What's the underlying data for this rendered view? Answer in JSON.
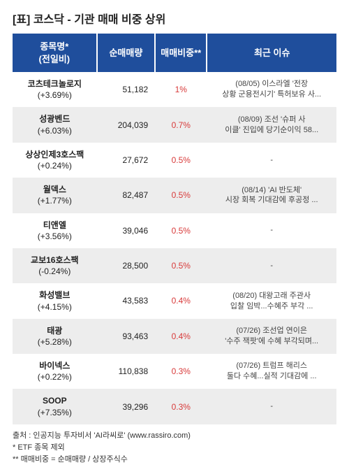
{
  "title": "[표] 코스닥 - 기관 매매 비중 상위",
  "columns": {
    "name": "종목명*\n(전일비)",
    "volume": "순매매량",
    "ratio": "매매비중**",
    "issue": "최근 이슈"
  },
  "colors": {
    "header_bg": "#1f4e9c",
    "header_text": "#ffffff",
    "row_alt_bg": "#ededed",
    "ratio_text": "#d83a3a",
    "body_text": "#222222"
  },
  "rows": [
    {
      "name": "코츠테크놀로지",
      "change": "(+3.69%)",
      "volume": "51,182",
      "ratio": "1%",
      "issue": "(08/05) 이스라엘 '전장\n상황 군용전시기' 특허보유 사..."
    },
    {
      "name": "성광벤드",
      "change": "(+6.03%)",
      "volume": "204,039",
      "ratio": "0.7%",
      "issue": "(08/09) 조선 '슈퍼 사\n이클' 진입에 당기순이익 58..."
    },
    {
      "name": "상상인제3호스팩",
      "change": "(+0.24%)",
      "volume": "27,672",
      "ratio": "0.5%",
      "issue": "-"
    },
    {
      "name": "월덱스",
      "change": "(+1.77%)",
      "volume": "82,487",
      "ratio": "0.5%",
      "issue": "(08/14) 'AI 반도체'\n시장 회복 기대감에 후공정 ..."
    },
    {
      "name": "티앤엘",
      "change": "(+3.56%)",
      "volume": "39,046",
      "ratio": "0.5%",
      "issue": "-"
    },
    {
      "name": "교보16호스팩",
      "change": "(-0.24%)",
      "volume": "28,500",
      "ratio": "0.5%",
      "issue": "-"
    },
    {
      "name": "화성밸브",
      "change": "(+4.15%)",
      "volume": "43,583",
      "ratio": "0.4%",
      "issue": "(08/20) 대왕고래 주관사\n입찰 임박...수혜주 부각 ..."
    },
    {
      "name": "태광",
      "change": "(+5.28%)",
      "volume": "93,463",
      "ratio": "0.4%",
      "issue": "(07/26) 조선업 연이은\n'수주 잭팟'에 수혜 부각되며..."
    },
    {
      "name": "바이넥스",
      "change": "(+0.22%)",
      "volume": "110,838",
      "ratio": "0.3%",
      "issue": "(07/26) 트럼프 해리스\n둘다 수혜...실적 기대감에 ..."
    },
    {
      "name": "SOOP",
      "change": "(+7.35%)",
      "volume": "39,296",
      "ratio": "0.3%",
      "issue": "-"
    }
  ],
  "footnotes": {
    "source": "출처 : 인공지능 투자비서 'AI라씨로' (www.rassiro.com)",
    "note1": "* ETF 종목 제외",
    "note2": "** 매매비중 = 순매매량 / 상장주식수"
  }
}
